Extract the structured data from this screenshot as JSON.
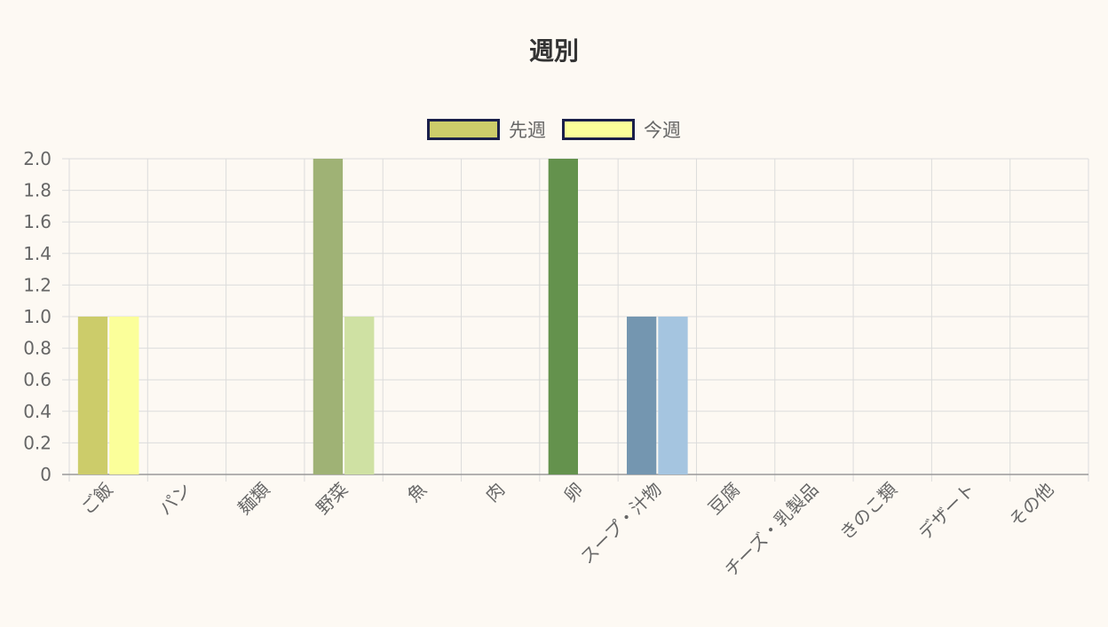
{
  "chart_data": {
    "type": "bar",
    "title": "週別",
    "xlabel": "",
    "ylabel": "",
    "ylim": [
      0,
      2.0
    ],
    "yticks": [
      "0",
      "0.2",
      "0.4",
      "0.6",
      "0.8",
      "1.0",
      "1.2",
      "1.4",
      "1.6",
      "1.8",
      "2.0"
    ],
    "grid": true,
    "legend_position": "top-center",
    "categories": [
      "ご飯",
      "パン",
      "麺類",
      "野菜",
      "魚",
      "肉",
      "卵",
      "スープ・汁物",
      "豆腐",
      "チーズ・乳製品",
      "きのこ類",
      "デザート",
      "その他"
    ],
    "series": [
      {
        "name": "先週",
        "legend_color": "#cccc6a",
        "values": [
          1,
          0,
          0,
          2,
          0,
          0,
          2,
          1,
          0,
          0,
          0,
          0,
          0
        ],
        "colors": [
          "#cccc6a",
          "#cccc6a",
          "#cccc6a",
          "#9fb275",
          "#9fb275",
          "#9fb275",
          "#64924d",
          "#7496b0",
          "#7496b0",
          "#7496b0",
          "#7496b0",
          "#7496b0",
          "#7496b0"
        ]
      },
      {
        "name": "今週",
        "legend_color": "#fbff9a",
        "values": [
          1,
          0,
          0,
          1,
          0,
          0,
          0,
          1,
          0,
          0,
          0,
          0,
          0
        ],
        "colors": [
          "#fbff9a",
          "#fbff9a",
          "#fbff9a",
          "#cfe1a3",
          "#cfe1a3",
          "#cfe1a3",
          "#8fb87a",
          "#a5c5e0",
          "#a5c5e0",
          "#a5c5e0",
          "#a5c5e0",
          "#a5c5e0",
          "#a5c5e0"
        ]
      }
    ]
  }
}
